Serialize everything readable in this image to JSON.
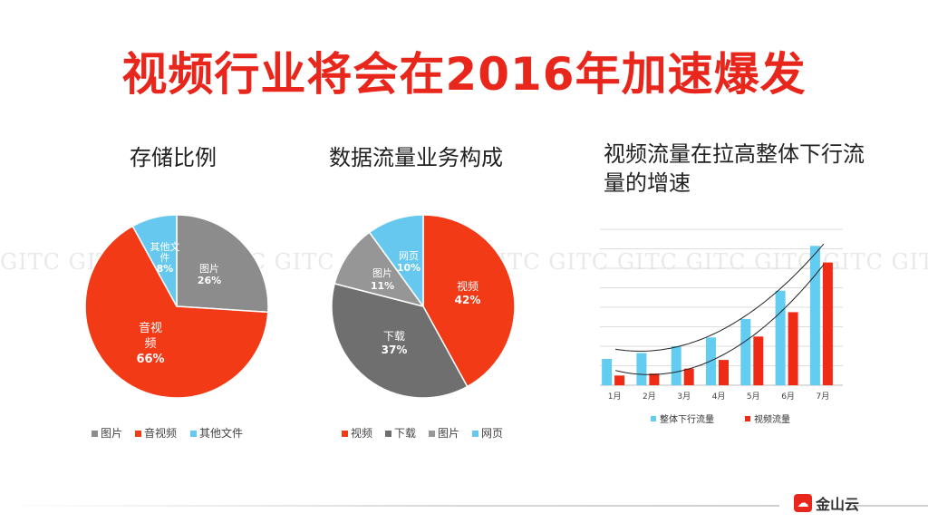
{
  "page": {
    "title": "视频行业将会在2016年加速爆发",
    "watermark": "GITC"
  },
  "brand": {
    "logo_text": "金山云",
    "color": "#e8261c"
  },
  "chart_data": [
    {
      "type": "pie",
      "title": "存储比例",
      "slices": [
        {
          "label": "图片",
          "value": 26,
          "pct": "26%",
          "color": "#8c8c8c"
        },
        {
          "label": "音视频",
          "value": 66,
          "pct": "66%",
          "color": "#f23a16"
        },
        {
          "label": "其他文件",
          "value": 8,
          "pct": "8%",
          "color": "#66c8ef"
        }
      ],
      "legend": [
        "图片",
        "音视频",
        "其他文件"
      ]
    },
    {
      "type": "pie",
      "title": "数据流量业务构成",
      "slices": [
        {
          "label": "视频",
          "value": 42,
          "pct": "42%",
          "color": "#f23a16"
        },
        {
          "label": "下载",
          "value": 37,
          "pct": "37%",
          "color": "#6f6f6f"
        },
        {
          "label": "图片",
          "value": 11,
          "pct": "11%",
          "color": "#969696"
        },
        {
          "label": "网页",
          "value": 10,
          "pct": "10%",
          "color": "#66c8ef"
        }
      ],
      "legend": [
        "视频",
        "下载",
        "图片",
        "网页"
      ]
    },
    {
      "type": "bar",
      "title": "视频流量在拉高整体下行流量的增速",
      "categories": [
        "1月",
        "2月",
        "3月",
        "4月",
        "5月",
        "6月",
        "7月"
      ],
      "series": [
        {
          "name": "整体下行流量",
          "color": "#62cdf1",
          "values": [
            27,
            33,
            40,
            49,
            68,
            97,
            143
          ]
        },
        {
          "name": "视频流量",
          "color": "#ef2b16",
          "values": [
            10,
            12,
            17,
            26,
            50,
            75,
            126
          ]
        }
      ],
      "trendlines": true,
      "ylim": [
        0,
        160
      ],
      "grid": true
    }
  ]
}
